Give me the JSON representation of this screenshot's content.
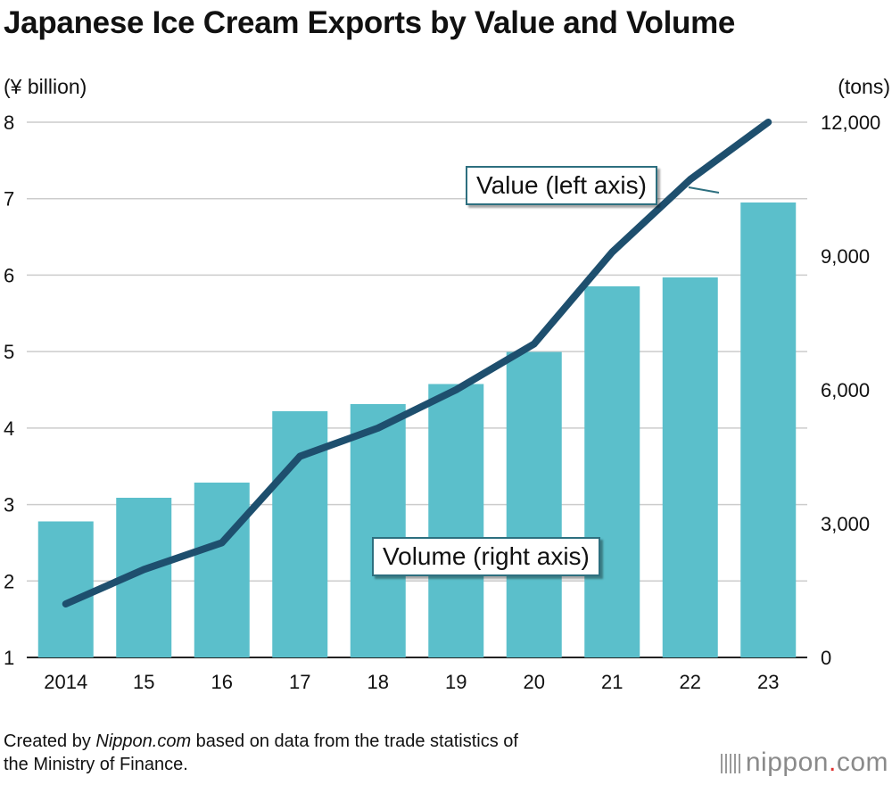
{
  "title": "Japanese Ice Cream Exports by Value and Volume",
  "left_unit": "(¥ billion)",
  "right_unit": "(tons)",
  "value_callout": "Value (left axis)",
  "volume_callout": "Volume (right axis)",
  "source": {
    "prefix": "Created by ",
    "brand": "Nippon.com",
    "suffix": " based on data from the trade statistics of",
    "line2": "the Ministry of Finance."
  },
  "logo": {
    "name": "nippon",
    "dot": ".",
    "tld": "com"
  },
  "colors": {
    "bar": "#5bbfcb",
    "line": "#1e4f6e",
    "grid": "#cccccc"
  },
  "chart_data": {
    "type": "bar+line",
    "title": "Japanese Ice Cream Exports by Value and Volume",
    "categories": [
      "2014",
      "15",
      "16",
      "17",
      "18",
      "19",
      "20",
      "21",
      "22",
      "23"
    ],
    "series": [
      {
        "name": "Volume (right axis)",
        "type": "bar",
        "axis": "right",
        "values": [
          3050,
          3580,
          3920,
          5520,
          5680,
          6130,
          6850,
          8320,
          8520,
          10200
        ]
      },
      {
        "name": "Value (left axis)",
        "type": "line",
        "axis": "left",
        "values": [
          1.7,
          2.15,
          2.5,
          3.63,
          4.0,
          4.5,
          5.1,
          6.3,
          7.25,
          8.0
        ]
      }
    ],
    "left_axis": {
      "label": "(¥ billion)",
      "ylim": [
        1,
        8
      ],
      "ticks": [
        "1",
        "2",
        "3",
        "4",
        "5",
        "6",
        "7",
        "8"
      ]
    },
    "right_axis": {
      "label": "(tons)",
      "ylim": [
        0,
        12000
      ],
      "ticks": [
        "0",
        "3,000",
        "6,000",
        "9,000",
        "12,000"
      ]
    },
    "grid": true
  }
}
